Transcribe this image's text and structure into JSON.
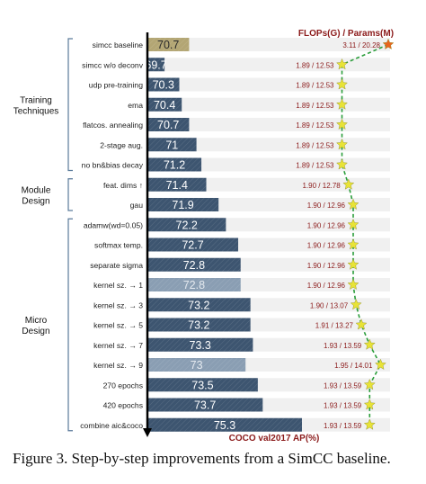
{
  "chart_data": {
    "type": "bar",
    "orientation": "horizontal",
    "xlabel": "COCO val2017 AP(%)",
    "secondary_series_title": "FLOPs(G) / Params(M)",
    "groups": [
      {
        "label": "Training Techniques",
        "rows": [
          0,
          6
        ]
      },
      {
        "label": "Module Design",
        "rows": [
          7,
          8
        ]
      },
      {
        "label": "Micro Design",
        "rows": [
          9,
          19
        ]
      }
    ],
    "categories": [
      "simcc baseline",
      "simcc w/o deconv",
      "udp pre-training",
      "ema",
      "flatcos. annealing",
      "2-stage aug.",
      "no bn&bias decay",
      "feat. dims ↑",
      "gau",
      "adamw(wd=0.05)",
      "softmax temp.",
      "separate sigma",
      "kernel sz. → 1",
      "kernel sz. → 3",
      "kernel sz. → 5",
      "kernel sz. → 7",
      "kernel sz. → 9",
      "270 epochs",
      "420 epochs",
      "combine aic&coco"
    ],
    "series": [
      {
        "values": [
          70.7,
          69.7,
          70.3,
          70.4,
          70.7,
          71,
          71.2,
          71.4,
          71.9,
          72.2,
          72.7,
          72.8,
          72.8,
          73.2,
          73.2,
          73.3,
          73,
          73.5,
          73.7,
          75.3
        ],
        "labels": [
          "70.7",
          "69.7",
          "70.3",
          "70.4",
          "70.7",
          "71",
          "71.2",
          "71.4",
          "71.9",
          "72.2",
          "72.7",
          "72.8",
          "72.8",
          "73.2",
          "73.2",
          "73.3",
          "73",
          "73.5",
          "73.7",
          "75.3"
        ],
        "bar_style": [
          "baseline",
          "main",
          "main",
          "main",
          "main",
          "main",
          "main",
          "main",
          "main",
          "main",
          "main",
          "main",
          "rejected",
          "main",
          "main",
          "main",
          "rejected",
          "main",
          "main",
          "main"
        ]
      }
    ],
    "flops": [
      3.11,
      1.89,
      1.89,
      1.89,
      1.89,
      1.89,
      1.89,
      1.9,
      1.9,
      1.9,
      1.9,
      1.9,
      1.9,
      1.9,
      1.91,
      1.93,
      1.95,
      1.93,
      1.93,
      1.93
    ],
    "params": [
      20.28,
      12.53,
      12.53,
      12.53,
      12.53,
      12.53,
      12.53,
      12.78,
      12.96,
      12.96,
      12.96,
      12.96,
      12.96,
      13.07,
      13.27,
      13.59,
      14.01,
      13.59,
      13.59,
      13.59
    ],
    "flops_params_labels": [
      "3.11 / 20.28",
      "1.89 / 12.53",
      "1.89 / 12.53",
      "1.89 / 12.53",
      "1.89 / 12.53",
      "1.89 / 12.53",
      "1.89 / 12.53",
      "1.90 / 12.78",
      "1.90 / 12.96",
      "1.90 / 12.96",
      "1.90 / 12.96",
      "1.90 / 12.96",
      "1.90 / 12.96",
      "1.90 / 13.07",
      "1.91 / 13.27",
      "1.93 / 13.59",
      "1.95 / 14.01",
      "1.93 / 13.59",
      "1.93 / 13.59",
      "1.93 / 13.59"
    ],
    "xlim": [
      69.0,
      75.5
    ],
    "grid": false,
    "colors": {
      "main_bar": "#3d5570",
      "baseline_bar": "#b3a674",
      "rejected_bar": "#8a9eb3",
      "row_background": "#f0f0f0",
      "flops_text": "#8b1a1a",
      "trend_line": "#2a9d3a",
      "star": "#e8e337",
      "baseline_star": "#e8641e",
      "bracket": "#5a7a9a"
    }
  },
  "caption": "Figure 3. Step-by-step improvements from a SimCC baseline."
}
